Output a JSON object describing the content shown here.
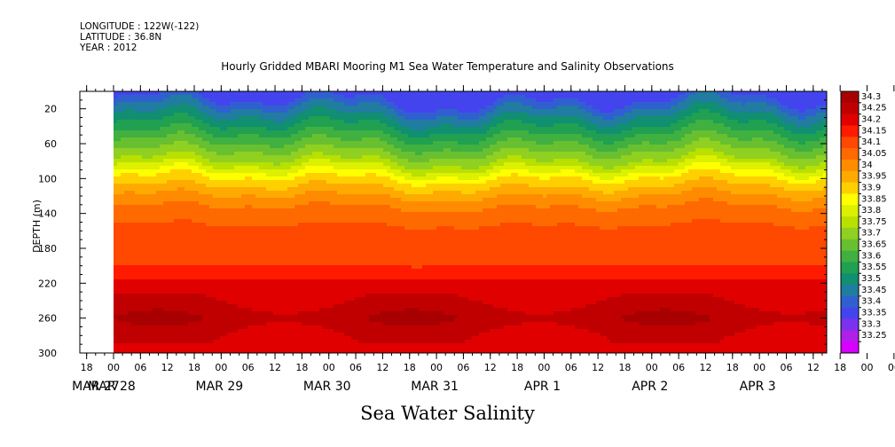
{
  "meta": {
    "longitude": "LONGITUDE : 122W(-122)",
    "latitude": "LATITUDE : 36.8N",
    "year": "YEAR : 2012"
  },
  "chart_data": {
    "type": "heatmap",
    "title": "Hourly Gridded MBARI Mooring M1 Sea Water Temperature and Salinity Observations",
    "xlabel": "Sea Water Salinity",
    "ylabel": "DEPTH (m)",
    "ylim": [
      300,
      0
    ],
    "y_ticks": [
      "20",
      "60",
      "100",
      "140",
      "180",
      "220",
      "260",
      "300"
    ],
    "hour_ticks": [
      "18",
      "00",
      "06",
      "12",
      "18",
      "00",
      "06",
      "12",
      "18",
      "00",
      "06",
      "12",
      "18",
      "00",
      "06",
      "12",
      "18",
      "00",
      "06",
      "12",
      "18",
      "00",
      "06",
      "12",
      "18",
      "00",
      "06",
      "12",
      "18",
      "00",
      "06",
      "12"
    ],
    "date_labels": [
      "MAR 27",
      "MAR 28",
      "MAR 29",
      "MAR 30",
      "MAR 31",
      "APR  1",
      "APR  2",
      "APR  3"
    ],
    "data_range_hours": [
      0,
      159
    ],
    "colorbar_labels": [
      "34.3",
      "34.25",
      "34.2",
      "34.15",
      "34.1",
      "34.05",
      "34",
      "33.95",
      "33.9",
      "33.85",
      "33.8",
      "33.75",
      "33.7",
      "33.65",
      "33.6",
      "33.55",
      "33.5",
      "33.45",
      "33.4",
      "33.35",
      "33.3",
      "33.25"
    ],
    "colors": [
      "#a80000",
      "#c00000",
      "#e00000",
      "#ff1a00",
      "#ff4800",
      "#ff6a00",
      "#ff8c00",
      "#ffaa00",
      "#ffd000",
      "#ffff00",
      "#dcf000",
      "#b8e000",
      "#90d020",
      "#68c030",
      "#40b040",
      "#20a050",
      "#109070",
      "#207ca0",
      "#3060d0",
      "#4444ee",
      "#7a32ee",
      "#b020e8",
      "#d800ff"
    ],
    "profile_depth": [
      0,
      10,
      20,
      40,
      60,
      80,
      100,
      120,
      140,
      160,
      180,
      200,
      220,
      240,
      260,
      280,
      300
    ],
    "profile_salinity": [
      33.31,
      33.34,
      33.4,
      33.5,
      33.6,
      33.7,
      33.85,
      33.95,
      34.03,
      34.06,
      34.07,
      34.1,
      34.16,
      34.2,
      34.24,
      34.2,
      34.18
    ]
  }
}
